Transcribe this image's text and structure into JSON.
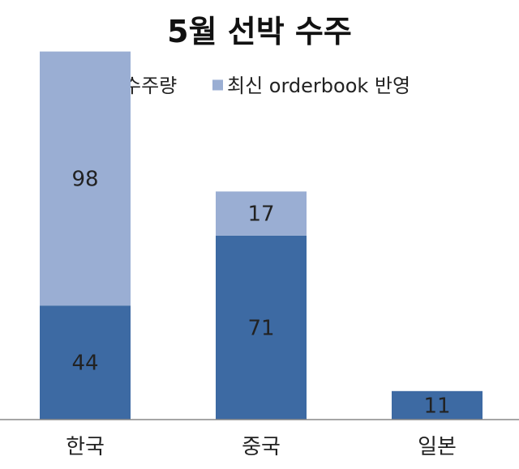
{
  "chart_data": {
    "type": "bar",
    "stacked": true,
    "title": "5월 선박 수주",
    "legend_position": "top",
    "categories": [
      "한국",
      "중국",
      "일본"
    ],
    "series": [
      {
        "name": "수주량",
        "values": [
          44,
          71,
          11
        ],
        "color": "#3d6aa3"
      },
      {
        "name": "최신 orderbook 반영",
        "values": [
          98,
          17,
          0
        ],
        "color": "#9aaed3"
      }
    ],
    "ylim": [
      0,
      145
    ],
    "grid": false
  }
}
